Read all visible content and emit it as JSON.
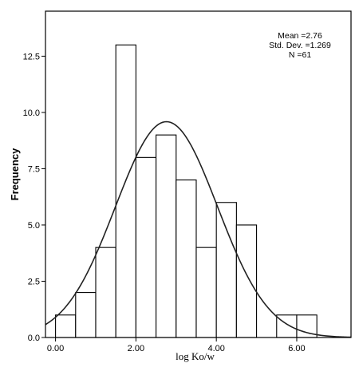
{
  "chart_data": {
    "type": "bar",
    "subtype": "histogram",
    "xlabel": "log Ko/w",
    "ylabel": "Frequency",
    "bins": [
      {
        "start": 0.0,
        "end": 0.5,
        "count": 1
      },
      {
        "start": 0.5,
        "end": 1.0,
        "count": 2
      },
      {
        "start": 1.0,
        "end": 1.5,
        "count": 4
      },
      {
        "start": 1.5,
        "end": 2.0,
        "count": 13
      },
      {
        "start": 2.0,
        "end": 2.5,
        "count": 8
      },
      {
        "start": 2.5,
        "end": 3.0,
        "count": 9
      },
      {
        "start": 3.0,
        "end": 3.5,
        "count": 7
      },
      {
        "start": 3.5,
        "end": 4.0,
        "count": 4
      },
      {
        "start": 4.0,
        "end": 4.5,
        "count": 6
      },
      {
        "start": 4.5,
        "end": 5.0,
        "count": 5
      },
      {
        "start": 5.0,
        "end": 5.5,
        "count": 0
      },
      {
        "start": 5.5,
        "end": 6.0,
        "count": 1
      },
      {
        "start": 6.0,
        "end": 6.5,
        "count": 1
      }
    ],
    "xlim": [
      -0.25,
      7.35
    ],
    "ylim": [
      0,
      14.5
    ],
    "xticks": [
      0,
      2,
      4,
      6
    ],
    "xtick_labels": [
      "0.00",
      "2.00",
      "4.00",
      "6.00"
    ],
    "yticks": [
      0,
      2.5,
      5,
      7.5,
      10,
      12.5
    ],
    "ytick_labels": [
      "0.0",
      "2.5",
      "5.0",
      "7.5",
      "10.0",
      "12.5"
    ],
    "normal_curve": {
      "mean": 2.76,
      "std_dev": 1.269,
      "n": 61,
      "bin_width": 0.5
    },
    "stats": {
      "mean_text": "Mean =2.76",
      "std_text": "Std. Dev. =1.269",
      "n_text": "N =61"
    },
    "grid": false,
    "legend": "none"
  }
}
